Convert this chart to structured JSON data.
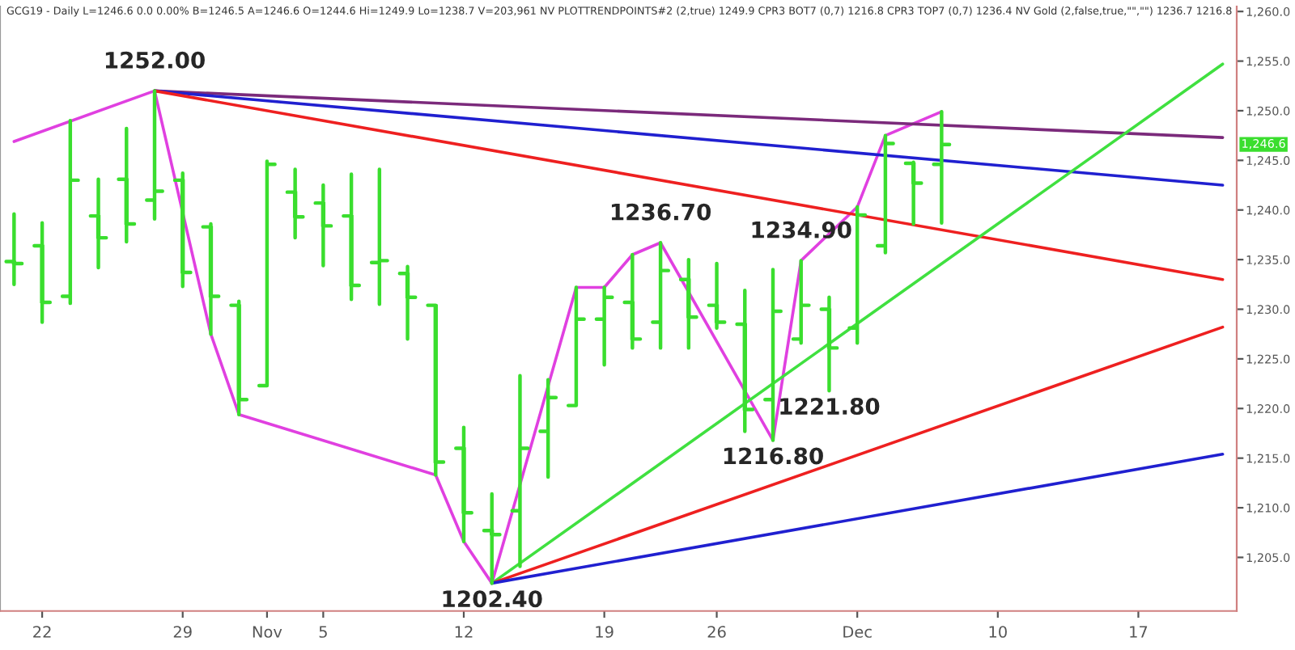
{
  "chart_data": {
    "type": "candlestick",
    "title": "GCG19 - Daily L=1246.6 0.0 0.00% B=1246.5 A=1246.6 O=1244.6 Hi=1249.9 Lo=1238.7 V=203,961 NV PLOTTRENDPOINTS#2 (2,true) 1249.9 CPR3 BOT7 (0,7) 1216.8 CPR3 TOP7 (0,7) 1236.4 NV Gold (2,false,true,\"\",\"\") 1236.7 1216.8",
    "categories": [
      null,
      "22",
      null,
      null,
      null,
      null,
      "29",
      null,
      null,
      "Nov",
      null,
      "5",
      null,
      null,
      null,
      null,
      "12",
      null,
      null,
      null,
      null,
      "19",
      null,
      null,
      null,
      "26",
      null,
      null,
      null,
      null,
      "Dec",
      null,
      null,
      null,
      null,
      "10",
      null,
      null,
      null,
      null,
      "17",
      null,
      null,
      null
    ],
    "color": "#3ade2e",
    "ohlc": [
      [
        1234.8,
        1239.6,
        1232.5,
        1234.6
      ],
      [
        1236.4,
        1238.7,
        1228.7,
        1230.7
      ],
      [
        1231.3,
        1249.0,
        1230.6,
        1243.0
      ],
      [
        1239.4,
        1243.1,
        1234.2,
        1237.2
      ],
      [
        1243.1,
        1248.2,
        1236.8,
        1238.6
      ],
      [
        1241.0,
        1252.0,
        1239.1,
        1241.9
      ],
      [
        1243.0,
        1243.7,
        1232.3,
        1233.7
      ],
      [
        1238.3,
        1238.6,
        1227.5,
        1231.3
      ],
      [
        1230.4,
        1230.8,
        1219.4,
        1220.9
      ],
      [
        1222.3,
        1244.9,
        1222.3,
        1244.6
      ],
      [
        1241.8,
        1244.1,
        1237.2,
        1239.3
      ],
      [
        1240.7,
        1242.5,
        1234.4,
        1238.4
      ],
      [
        1239.4,
        1243.6,
        1231.0,
        1232.4
      ],
      [
        1234.7,
        1244.1,
        1230.5,
        1234.9
      ],
      [
        1233.6,
        1234.3,
        1227.0,
        1231.2
      ],
      [
        1230.4,
        1230.4,
        1213.3,
        1214.6
      ],
      [
        1216.0,
        1218.1,
        1206.6,
        1209.5
      ],
      [
        1207.7,
        1211.4,
        1202.4,
        1207.3
      ],
      [
        1209.7,
        1223.3,
        1204.1,
        1216.0
      ],
      [
        1217.7,
        1222.9,
        1213.1,
        1221.1
      ],
      [
        1220.3,
        1232.2,
        1220.3,
        1229.0
      ],
      [
        1229.0,
        1232.2,
        1224.4,
        1231.2
      ],
      [
        1230.7,
        1235.5,
        1226.1,
        1227.0
      ],
      [
        1228.7,
        1236.7,
        1226.1,
        1233.9
      ],
      [
        1233.0,
        1235.0,
        1226.1,
        1229.2
      ],
      [
        1230.4,
        1234.6,
        1228.1,
        1228.7
      ],
      [
        1228.5,
        1231.9,
        1217.7,
        1219.9
      ],
      [
        1220.9,
        1234.0,
        1216.8,
        1229.8
      ],
      [
        1227.0,
        1234.9,
        1226.6,
        1230.4
      ],
      [
        1230.0,
        1231.2,
        1221.8,
        1226.1
      ],
      [
        1228.1,
        1240.3,
        1226.6,
        1239.5
      ],
      [
        1236.4,
        1247.5,
        1235.7,
        1246.7
      ],
      [
        1244.7,
        1244.8,
        1238.6,
        1242.7
      ],
      [
        1244.6,
        1249.9,
        1238.7,
        1246.6
      ],
      null,
      null,
      null,
      null,
      null,
      null,
      null,
      null,
      null,
      null
    ],
    "series": [
      {
        "type": "line",
        "color": "#e040e0",
        "values": [
          1246.9,
          null,
          null,
          null,
          null,
          1252.0,
          null,
          1227.5,
          1219.4,
          null,
          null,
          null,
          null,
          null,
          null,
          1213.3,
          1206.6,
          1202.4,
          null,
          null,
          1232.2,
          1232.2,
          1235.5,
          1236.7,
          null,
          null,
          null,
          1216.8,
          1234.9,
          null,
          1240.3,
          1247.5,
          null,
          1249.9,
          null,
          null,
          null,
          null,
          null,
          null,
          null,
          null,
          null,
          null
        ]
      },
      {
        "type": "line",
        "color": "#7b2a7b",
        "values": [
          null,
          null,
          null,
          null,
          null,
          1252.0,
          null,
          null,
          null,
          null,
          null,
          null,
          null,
          null,
          null,
          null,
          null,
          null,
          null,
          null,
          null,
          null,
          null,
          null,
          null,
          null,
          null,
          null,
          null,
          null,
          null,
          null,
          null,
          null,
          null,
          null,
          null,
          null,
          null,
          null,
          null,
          null,
          null,
          1247.3
        ]
      },
      {
        "type": "line",
        "color": "#2020d0",
        "values": [
          null,
          null,
          null,
          null,
          null,
          1252.0,
          null,
          null,
          null,
          null,
          null,
          null,
          null,
          null,
          null,
          null,
          null,
          null,
          null,
          null,
          null,
          null,
          null,
          null,
          null,
          null,
          null,
          null,
          null,
          null,
          null,
          null,
          null,
          null,
          null,
          null,
          null,
          null,
          null,
          null,
          null,
          null,
          null,
          1242.5
        ]
      },
      {
        "type": "line",
        "color": "#ee2020",
        "values": [
          null,
          null,
          null,
          null,
          null,
          1252.0,
          null,
          null,
          null,
          null,
          null,
          null,
          null,
          null,
          null,
          null,
          null,
          null,
          null,
          null,
          null,
          null,
          null,
          null,
          null,
          null,
          null,
          null,
          null,
          null,
          null,
          null,
          null,
          null,
          null,
          null,
          null,
          null,
          null,
          null,
          null,
          null,
          null,
          1233.0
        ]
      },
      {
        "type": "line",
        "color": "#40e040",
        "values": [
          null,
          null,
          null,
          null,
          null,
          null,
          null,
          null,
          null,
          null,
          null,
          null,
          null,
          null,
          null,
          null,
          null,
          1202.4,
          null,
          null,
          null,
          null,
          null,
          null,
          null,
          null,
          null,
          null,
          null,
          null,
          null,
          null,
          null,
          null,
          null,
          null,
          null,
          null,
          null,
          null,
          null,
          null,
          null,
          1254.7
        ]
      },
      {
        "type": "line",
        "color": "#ee2020",
        "values": [
          null,
          null,
          null,
          null,
          null,
          null,
          null,
          null,
          null,
          null,
          null,
          null,
          null,
          null,
          null,
          null,
          null,
          1202.4,
          null,
          null,
          null,
          null,
          null,
          null,
          null,
          null,
          null,
          null,
          null,
          null,
          null,
          null,
          null,
          null,
          null,
          null,
          null,
          null,
          null,
          null,
          null,
          null,
          null,
          1228.2
        ]
      },
      {
        "type": "line",
        "color": "#2020d0",
        "values": [
          null,
          null,
          null,
          null,
          null,
          null,
          null,
          null,
          null,
          null,
          null,
          null,
          null,
          null,
          null,
          null,
          null,
          1202.4,
          null,
          null,
          null,
          null,
          null,
          null,
          null,
          null,
          null,
          null,
          null,
          null,
          null,
          null,
          null,
          null,
          null,
          null,
          null,
          null,
          null,
          null,
          null,
          null,
          null,
          1215.4
        ]
      }
    ],
    "ylim": [
      1199.6,
      1260.5
    ],
    "yticks": [
      {
        "value": 1205,
        "label": "1,205.0"
      },
      {
        "value": 1210,
        "label": "1,210.0"
      },
      {
        "value": 1215,
        "label": "1,215.0"
      },
      {
        "value": 1220,
        "label": "1,220.0"
      },
      {
        "value": 1225,
        "label": "1,225.0"
      },
      {
        "value": 1230,
        "label": "1,230.0"
      },
      {
        "value": 1235,
        "label": "1,235.0"
      },
      {
        "value": 1240,
        "label": "1,240.0"
      },
      {
        "value": 1245,
        "label": "1,245.0"
      },
      {
        "value": 1250,
        "label": "1,250.0"
      },
      {
        "value": 1255,
        "label": "1,255.0"
      },
      {
        "value": 1260,
        "label": "1,260.0"
      }
    ],
    "annotations": [
      {
        "text": "1252.00",
        "y": 1252.0
      },
      {
        "text": "1202.40",
        "y": 1202.4
      },
      {
        "text": "1236.70",
        "y": 1236.7
      },
      {
        "text": "1216.80",
        "y": 1216.8
      },
      {
        "text": "1234.90",
        "y": 1234.9
      },
      {
        "text": "1221.80",
        "y": 1221.8
      },
      {
        "text": "1,246.6",
        "y": 1246.6
      }
    ],
    "grid": false
  }
}
